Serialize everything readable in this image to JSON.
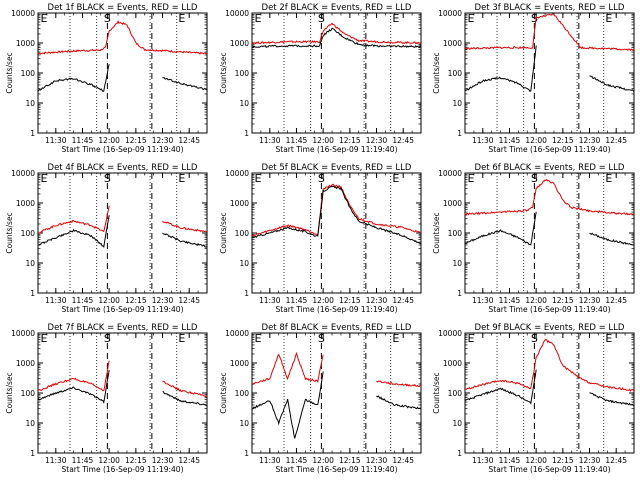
{
  "chart_data": [
    {
      "type": "line",
      "title": "Det 1f BLACK = Events, RED = LLD",
      "xlabel": "Start Time (16-Sep-09 11:19:40)",
      "ylabel": "Counts/sec",
      "yscale": "log",
      "ylim": [
        1,
        10000
      ],
      "xlim": [
        "11:20",
        "12:55"
      ],
      "grid": false,
      "yticks": [
        "1",
        "10",
        "100",
        "1000",
        "10000"
      ],
      "xticks": [
        "11:30",
        "11:45",
        "12:00",
        "12:15",
        "12:30",
        "12:45"
      ],
      "annotations": [
        "S",
        "E"
      ],
      "series": [
        {
          "color": "#e00000",
          "x": [
            "11:20",
            "11:35",
            "11:45",
            "11:55",
            "11:58",
            "12:00",
            "12:05",
            "12:10",
            "12:15",
            "12:20",
            "12:30",
            "12:45",
            "12:55"
          ],
          "y": [
            450,
            520,
            560,
            580,
            700,
            2500,
            5000,
            4000,
            1000,
            600,
            560,
            480,
            440
          ]
        },
        {
          "color": "#000000",
          "x": [
            "11:20",
            "11:30",
            "11:40",
            "11:50",
            "11:57",
            "12:00",
            "12:05",
            "12:15",
            "12:25",
            "12:30",
            "12:40",
            "12:55"
          ],
          "y": [
            25,
            55,
            65,
            40,
            25,
            200,
            null,
            null,
            null,
            70,
            45,
            28
          ]
        }
      ]
    },
    {
      "type": "line",
      "title": "Det 2f BLACK = Events, RED = LLD",
      "xlabel": "Start Time (16-Sep-09 11:19:40)",
      "ylabel": "Counts/sec",
      "yscale": "log",
      "ylim": [
        1,
        10000
      ],
      "xlim": [
        "11:20",
        "12:55"
      ],
      "grid": false,
      "yticks": [
        "1",
        "10",
        "100",
        "1000",
        "10000"
      ],
      "xticks": [
        "11:30",
        "11:45",
        "12:00",
        "12:15",
        "12:30",
        "12:45"
      ],
      "annotations": [
        "S",
        "E"
      ],
      "series": [
        {
          "color": "#e00000",
          "x": [
            "11:20",
            "11:40",
            "11:58",
            "12:00",
            "12:05",
            "12:12",
            "12:20",
            "12:30",
            "12:55"
          ],
          "y": [
            1000,
            1100,
            1100,
            2500,
            4500,
            2000,
            1200,
            1100,
            1000
          ]
        },
        {
          "color": "#000000",
          "x": [
            "11:20",
            "11:40",
            "11:58",
            "12:00",
            "12:05",
            "12:12",
            "12:20",
            "12:30",
            "12:55"
          ],
          "y": [
            750,
            800,
            800,
            1800,
            3000,
            1500,
            900,
            800,
            750
          ]
        }
      ]
    },
    {
      "type": "line",
      "title": "Det 3f BLACK = Events, RED = LLD",
      "xlabel": "Start Time (16-Sep-09 11:19:40)",
      "ylabel": "Counts/sec",
      "yscale": "log",
      "ylim": [
        1,
        10000
      ],
      "xlim": [
        "11:20",
        "12:55"
      ],
      "grid": false,
      "yticks": [
        "1",
        "10",
        "100",
        "1000",
        "10000"
      ],
      "xticks": [
        "11:30",
        "11:45",
        "12:00",
        "12:15",
        "12:30",
        "12:45"
      ],
      "annotations": [
        "S",
        "E"
      ],
      "series": [
        {
          "color": "#e00000",
          "x": [
            "11:20",
            "11:40",
            "11:58",
            "12:00",
            "12:10",
            "12:25",
            "12:40",
            "12:55"
          ],
          "y": [
            650,
            700,
            700,
            7000,
            9000,
            700,
            650,
            600
          ]
        },
        {
          "color": "#000000",
          "x": [
            "11:20",
            "11:30",
            "11:40",
            "11:50",
            "11:57",
            "12:00",
            "12:05",
            "12:25",
            "12:30",
            "12:40",
            "12:55"
          ],
          "y": [
            25,
            55,
            70,
            45,
            25,
            800,
            null,
            null,
            80,
            40,
            25
          ]
        }
      ]
    },
    {
      "type": "line",
      "title": "Det 4f BLACK = Events, RED = LLD",
      "xlabel": "Start Time (16-Sep-09 11:19:40)",
      "ylabel": "Counts/sec",
      "yscale": "log",
      "ylim": [
        1,
        10000
      ],
      "xlim": [
        "11:20",
        "12:55"
      ],
      "grid": false,
      "yticks": [
        "1",
        "10",
        "100",
        "1000",
        "10000"
      ],
      "xticks": [
        "11:30",
        "11:45",
        "12:00",
        "12:15",
        "12:30",
        "12:45"
      ],
      "annotations": [
        "S",
        "E"
      ],
      "series": [
        {
          "color": "#e00000",
          "x": [
            "11:20",
            "11:30",
            "11:40",
            "11:50",
            "11:57",
            "12:00",
            "12:05",
            "12:25",
            "12:30",
            "12:40",
            "12:55"
          ],
          "y": [
            100,
            180,
            250,
            180,
            110,
            800,
            null,
            null,
            250,
            150,
            110
          ]
        },
        {
          "color": "#000000",
          "x": [
            "11:20",
            "11:30",
            "11:40",
            "11:50",
            "11:57",
            "12:00",
            "12:05",
            "12:25",
            "12:30",
            "12:40",
            "12:55"
          ],
          "y": [
            40,
            70,
            120,
            80,
            35,
            400,
            null,
            null,
            100,
            55,
            35
          ]
        }
      ]
    },
    {
      "type": "line",
      "title": "Det 5f BLACK = Events, RED = LLD",
      "xlabel": "Start Time (16-Sep-09 11:19:40)",
      "ylabel": "Counts/sec",
      "yscale": "log",
      "ylim": [
        1,
        10000
      ],
      "xlim": [
        "11:20",
        "12:55"
      ],
      "grid": false,
      "yticks": [
        "1",
        "10",
        "100",
        "1000",
        "10000"
      ],
      "xticks": [
        "11:30",
        "11:45",
        "12:00",
        "12:15",
        "12:30",
        "12:45"
      ],
      "annotations": [
        "S",
        "E"
      ],
      "series": [
        {
          "color": "#e00000",
          "x": [
            "11:20",
            "11:30",
            "11:40",
            "11:50",
            "11:57",
            "12:00",
            "12:05",
            "12:10",
            "12:15",
            "12:20",
            "12:30",
            "12:45",
            "12:55"
          ],
          "y": [
            80,
            120,
            180,
            130,
            90,
            3000,
            4000,
            3500,
            800,
            300,
            200,
            150,
            100
          ]
        },
        {
          "color": "#000000",
          "x": [
            "11:20",
            "11:30",
            "11:40",
            "11:50",
            "11:57",
            "12:00",
            "12:05",
            "12:10",
            "12:15",
            "12:20",
            "12:30",
            "12:45",
            "12:55"
          ],
          "y": [
            70,
            100,
            150,
            110,
            75,
            2500,
            3500,
            3000,
            700,
            250,
            150,
            80,
            45
          ]
        }
      ]
    },
    {
      "type": "line",
      "title": "Det 6f BLACK = Events, RED = LLD",
      "xlabel": "Start Time (16-Sep-09 11:19:40)",
      "ylabel": "Counts/sec",
      "yscale": "log",
      "ylim": [
        1,
        10000
      ],
      "xlim": [
        "11:20",
        "12:55"
      ],
      "grid": false,
      "yticks": [
        "1",
        "10",
        "100",
        "1000",
        "10000"
      ],
      "xticks": [
        "11:30",
        "11:45",
        "12:00",
        "12:15",
        "12:30",
        "12:45"
      ],
      "annotations": [
        "S",
        "E"
      ],
      "series": [
        {
          "color": "#e00000",
          "x": [
            "11:20",
            "11:35",
            "11:45",
            "11:55",
            "11:58",
            "12:00",
            "12:05",
            "12:10",
            "12:15",
            "12:20",
            "12:30",
            "12:45",
            "12:55"
          ],
          "y": [
            420,
            480,
            520,
            560,
            700,
            3000,
            6000,
            4500,
            1200,
            700,
            550,
            450,
            420
          ]
        },
        {
          "color": "#000000",
          "x": [
            "11:20",
            "11:30",
            "11:40",
            "11:50",
            "11:57",
            "12:00",
            "12:05",
            "12:25",
            "12:30",
            "12:40",
            "12:55"
          ],
          "y": [
            45,
            80,
            120,
            70,
            40,
            500,
            null,
            null,
            100,
            60,
            40
          ]
        }
      ]
    },
    {
      "type": "line",
      "title": "Det 7f BLACK = Events, RED = LLD",
      "xlabel": "Start Time (16-Sep-09 11:19:40)",
      "ylabel": "Counts/sec",
      "yscale": "log",
      "ylim": [
        1,
        10000
      ],
      "xlim": [
        "11:20",
        "12:55"
      ],
      "grid": false,
      "yticks": [
        "1",
        "10",
        "100",
        "1000",
        "10000"
      ],
      "xticks": [
        "11:30",
        "11:45",
        "12:00",
        "12:15",
        "12:30",
        "12:45"
      ],
      "annotations": [
        "S",
        "E"
      ],
      "series": [
        {
          "color": "#e00000",
          "x": [
            "11:20",
            "11:30",
            "11:40",
            "11:50",
            "11:57",
            "12:00",
            "12:05",
            "12:25",
            "12:30",
            "12:40",
            "12:55"
          ],
          "y": [
            120,
            200,
            300,
            200,
            120,
            1200,
            null,
            null,
            250,
            120,
            80
          ]
        },
        {
          "color": "#000000",
          "x": [
            "11:20",
            "11:30",
            "11:40",
            "11:50",
            "11:57",
            "12:00",
            "12:05",
            "12:25",
            "12:30",
            "12:40",
            "12:55"
          ],
          "y": [
            60,
            100,
            150,
            90,
            50,
            600,
            null,
            null,
            110,
            55,
            40
          ]
        }
      ]
    },
    {
      "type": "line",
      "title": "Det 8f BLACK = Events, RED = LLD",
      "xlabel": "Start Time (16-Sep-09 11:19:40)",
      "ylabel": "Counts/sec",
      "yscale": "log",
      "ylim": [
        1,
        10000
      ],
      "xlim": [
        "11:20",
        "12:55"
      ],
      "grid": false,
      "yticks": [
        "1",
        "10",
        "100",
        "1000",
        "10000"
      ],
      "xticks": [
        "11:30",
        "11:45",
        "12:00",
        "12:15",
        "12:30",
        "12:45"
      ],
      "annotations": [
        "S",
        "E"
      ],
      "series": [
        {
          "color": "#e00000",
          "x": [
            "11:20",
            "11:30",
            "11:35",
            "11:40",
            "11:45",
            "11:50",
            "11:57",
            "12:00",
            "12:05",
            "12:25",
            "12:30",
            "12:40",
            "12:55"
          ],
          "y": [
            200,
            300,
            2000,
            300,
            2000,
            300,
            250,
            2000,
            null,
            null,
            250,
            200,
            170
          ]
        },
        {
          "color": "#000000",
          "x": [
            "11:20",
            "11:30",
            "11:35",
            "11:40",
            "11:44",
            "11:50",
            "11:57",
            "12:00",
            "12:05",
            "12:25",
            "12:30",
            "12:40",
            "12:55"
          ],
          "y": [
            30,
            55,
            10,
            60,
            3,
            60,
            40,
            500,
            null,
            null,
            80,
            40,
            30
          ]
        }
      ]
    },
    {
      "type": "line",
      "title": "Det 9f BLACK = Events, RED = LLD",
      "xlabel": "Start Time (16-Sep-09 11:19:40)",
      "ylabel": "Counts/sec",
      "yscale": "log",
      "ylim": [
        1,
        10000
      ],
      "xlim": [
        "11:20",
        "12:55"
      ],
      "grid": false,
      "yticks": [
        "1",
        "10",
        "100",
        "1000",
        "10000"
      ],
      "xticks": [
        "11:30",
        "11:45",
        "12:00",
        "12:15",
        "12:30",
        "12:45"
      ],
      "annotations": [
        "S",
        "E"
      ],
      "series": [
        {
          "color": "#e00000",
          "x": [
            "11:20",
            "11:30",
            "11:40",
            "11:50",
            "11:57",
            "12:00",
            "12:05",
            "12:10",
            "12:15",
            "12:25",
            "12:30",
            "12:40",
            "12:55"
          ],
          "y": [
            130,
            190,
            260,
            210,
            140,
            1500,
            6000,
            4000,
            800,
            300,
            220,
            160,
            120
          ]
        },
        {
          "color": "#000000",
          "x": [
            "11:20",
            "11:30",
            "11:40",
            "11:50",
            "11:57",
            "12:00",
            "12:05",
            "12:25",
            "12:30",
            "12:40",
            "12:55"
          ],
          "y": [
            55,
            90,
            140,
            80,
            45,
            600,
            null,
            null,
            100,
            55,
            40
          ]
        }
      ]
    }
  ]
}
